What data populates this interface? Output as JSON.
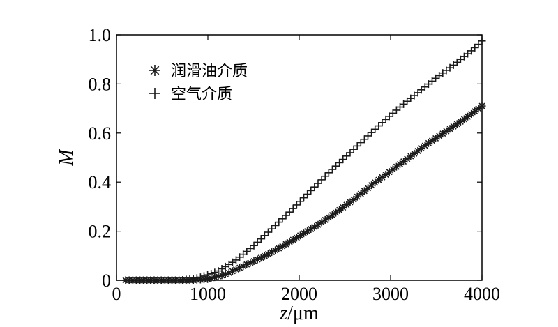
{
  "chart_data": {
    "type": "scatter",
    "title": "",
    "xlabel_var": "z",
    "xlabel_unit": "/μm",
    "ylabel": "M",
    "xlim": [
      0,
      4000
    ],
    "ylim": [
      0,
      1.0
    ],
    "xticks": [
      "0",
      "1000",
      "2000",
      "3000",
      "4000"
    ],
    "yticks": [
      "0",
      "0.2",
      "0.4",
      "0.6",
      "0.8",
      "1.0"
    ],
    "grid": false,
    "legend_position": "top-left",
    "series": [
      {
        "name": "润滑油介质",
        "marker": "asterisk",
        "points": [
          [
            100,
            0
          ],
          [
            400,
            0
          ],
          [
            800,
            0
          ],
          [
            1000,
            0.005
          ],
          [
            1200,
            0.025
          ],
          [
            1400,
            0.06
          ],
          [
            1600,
            0.095
          ],
          [
            1800,
            0.135
          ],
          [
            2000,
            0.18
          ],
          [
            2200,
            0.225
          ],
          [
            2400,
            0.275
          ],
          [
            2600,
            0.33
          ],
          [
            2800,
            0.39
          ],
          [
            3000,
            0.445
          ],
          [
            3200,
            0.5
          ],
          [
            3400,
            0.555
          ],
          [
            3600,
            0.605
          ],
          [
            3800,
            0.655
          ],
          [
            4000,
            0.71
          ]
        ]
      },
      {
        "name": "空气介质",
        "marker": "plus",
        "points": [
          [
            100,
            0
          ],
          [
            400,
            0
          ],
          [
            700,
            0
          ],
          [
            900,
            0.01
          ],
          [
            1100,
            0.035
          ],
          [
            1300,
            0.08
          ],
          [
            1500,
            0.14
          ],
          [
            1700,
            0.21
          ],
          [
            1900,
            0.28
          ],
          [
            2100,
            0.355
          ],
          [
            2300,
            0.43
          ],
          [
            2500,
            0.5
          ],
          [
            2700,
            0.57
          ],
          [
            2900,
            0.64
          ],
          [
            3100,
            0.705
          ],
          [
            3300,
            0.765
          ],
          [
            3500,
            0.825
          ],
          [
            3700,
            0.88
          ],
          [
            3900,
            0.94
          ],
          [
            4000,
            0.975
          ]
        ]
      }
    ]
  }
}
